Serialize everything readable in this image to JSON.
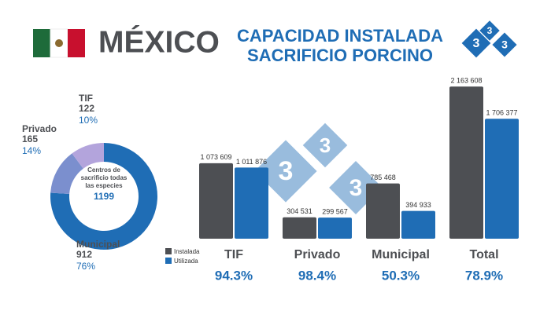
{
  "header": {
    "country": "MÉXICO",
    "title": [
      "CAPACIDAD INSTALADA",
      "SACRIFICIO PORCINO"
    ],
    "logo": [
      "3",
      "3",
      "3"
    ]
  },
  "chart_data": [
    {
      "type": "donut",
      "categories": [
        "Municipal",
        "Privado",
        "TIF"
      ],
      "values": [
        912,
        165,
        122
      ],
      "percent_labels": [
        "76%",
        "14%",
        "10%"
      ],
      "colors": [
        "#1f6db5",
        "#7b8fce",
        "#b3a4dc"
      ],
      "center_label": [
        "Centros de",
        "sacrificio todas",
        "las especies"
      ],
      "center_value": 1199
    },
    {
      "type": "bar",
      "categories": [
        "TIF",
        "Privado",
        "Municipal",
        "Total"
      ],
      "series": [
        {
          "name": "Instalada",
          "color": "#4d4f53",
          "values": [
            1073609,
            304531,
            785468,
            2163608
          ],
          "value_labels": [
            "1 073 609",
            "304 531",
            "785 468",
            "2 163 608"
          ]
        },
        {
          "name": "Utilizada",
          "color": "#1f6db5",
          "values": [
            1011876,
            299567,
            394933,
            1706377
          ],
          "value_labels": [
            "1 011 876",
            "299 567",
            "394 933",
            "1 706 377"
          ]
        }
      ],
      "utilization_labels": [
        "94.3%",
        "98.4%",
        "50.3%",
        "78.9%"
      ],
      "ylim": [
        0,
        2200000
      ]
    }
  ]
}
